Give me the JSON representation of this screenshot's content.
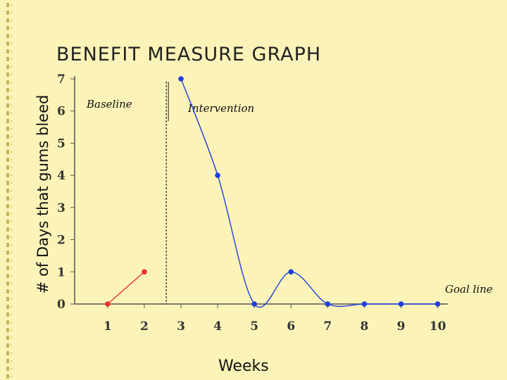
{
  "slide": {
    "title": "BENEFIT MEASURE GRAPH"
  },
  "chart_data": {
    "type": "line",
    "title": "",
    "xlabel": "Weeks",
    "ylabel": "# of Days that gums bleed",
    "x_ticks": [
      1,
      2,
      3,
      4,
      5,
      6,
      7,
      8,
      9,
      10
    ],
    "y_ticks": [
      0,
      1,
      2,
      3,
      4,
      5,
      6,
      7
    ],
    "xlim": [
      0.1,
      10.2
    ],
    "ylim": [
      0,
      7
    ],
    "phase_change_x": 2.6,
    "phase_labels": [
      "Baseline",
      "Intervention"
    ],
    "goal_label": "Goal line",
    "goal_value": 0,
    "grid": false,
    "series": [
      {
        "name": "Baseline",
        "color": "#e8322a",
        "x": [
          1,
          2
        ],
        "y": [
          0,
          1
        ]
      },
      {
        "name": "Intervention",
        "color": "#1f3ee0",
        "x": [
          3,
          4,
          5,
          6,
          7,
          8,
          9,
          10
        ],
        "y": [
          7,
          4,
          0,
          1,
          0,
          0,
          0,
          0
        ]
      }
    ]
  },
  "colors": {
    "background": "#fbf3b8",
    "axis": "#555555",
    "baseline": "#e8322a",
    "intervention": "#1f3ee0"
  }
}
